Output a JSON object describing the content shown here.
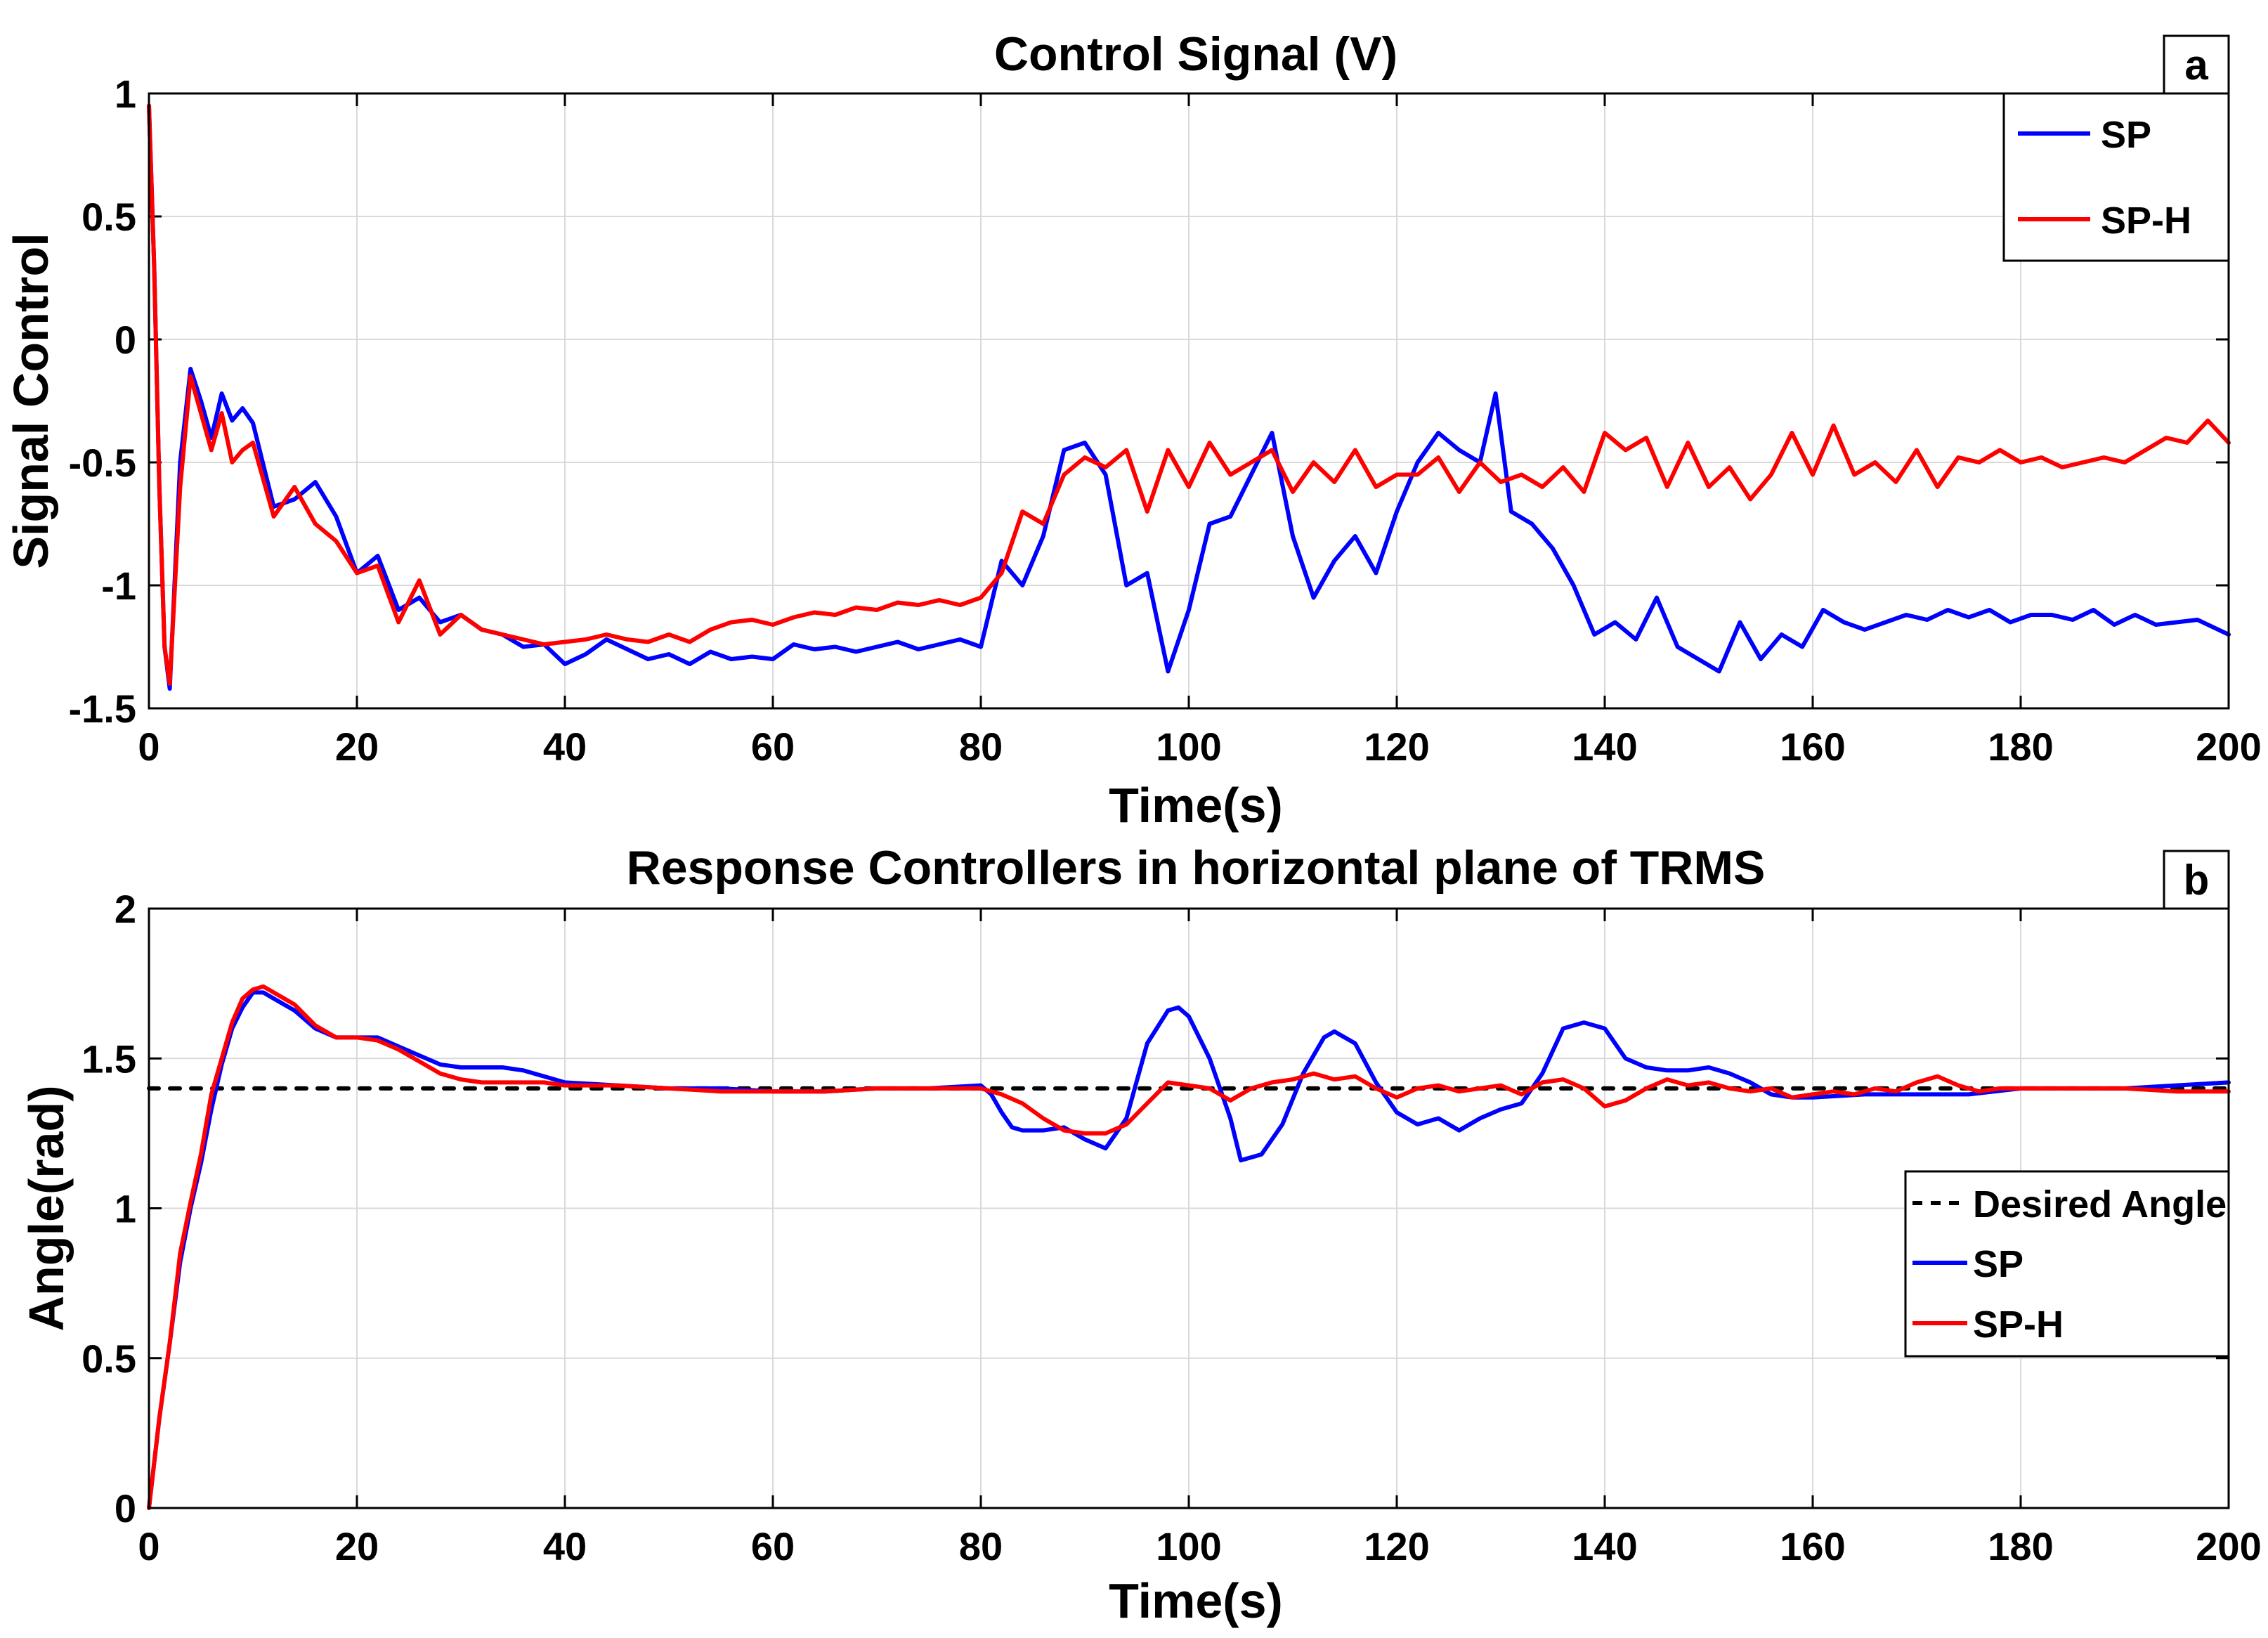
{
  "chart_data": [
    {
      "type": "line",
      "panel_label": "a",
      "title": "Control Signal (V)",
      "xlabel": "Time(s)",
      "ylabel": "Signal Control",
      "xlim": [
        0,
        200
      ],
      "ylim": [
        -1.5,
        1
      ],
      "xticks": [
        0,
        20,
        40,
        60,
        80,
        100,
        120,
        140,
        160,
        180,
        200
      ],
      "yticks": [
        -1.5,
        -1,
        -0.5,
        0,
        0.5,
        1
      ],
      "ytick_labels": [
        "-1.5",
        "-1",
        "-0.5",
        "0",
        "0.5",
        "1"
      ],
      "grid": true,
      "legend_position": "top-right",
      "series": [
        {
          "name": "SP",
          "color": "#0000ff",
          "x": [
            0,
            0.5,
            1,
            1.5,
            2,
            3,
            4,
            5,
            6,
            7,
            8,
            9,
            10,
            12,
            14,
            16,
            18,
            20,
            22,
            24,
            26,
            28,
            30,
            32,
            34,
            36,
            38,
            40,
            42,
            44,
            46,
            48,
            50,
            52,
            54,
            56,
            58,
            60,
            62,
            64,
            66,
            68,
            70,
            72,
            74,
            76,
            78,
            80,
            82,
            84,
            86,
            88,
            90,
            92,
            94,
            96,
            98,
            100,
            102,
            104,
            106,
            108,
            110,
            112,
            114,
            116,
            118,
            120,
            122,
            124,
            126,
            128,
            129.5,
            131,
            133,
            135,
            137,
            139,
            141,
            143,
            145,
            147,
            149,
            151,
            153,
            155,
            157,
            159,
            161,
            163,
            165,
            167,
            169,
            171,
            173,
            175,
            177,
            179,
            181,
            183,
            185,
            187,
            189,
            191,
            193,
            195,
            197,
            200
          ],
          "y": [
            0.95,
            0.3,
            -0.6,
            -1.25,
            -1.42,
            -0.5,
            -0.12,
            -0.25,
            -0.4,
            -0.22,
            -0.33,
            -0.28,
            -0.34,
            -0.68,
            -0.65,
            -0.58,
            -0.72,
            -0.95,
            -0.88,
            -1.1,
            -1.05,
            -1.15,
            -1.12,
            -1.18,
            -1.2,
            -1.25,
            -1.24,
            -1.32,
            -1.28,
            -1.22,
            -1.26,
            -1.3,
            -1.28,
            -1.32,
            -1.27,
            -1.3,
            -1.29,
            -1.3,
            -1.24,
            -1.26,
            -1.25,
            -1.27,
            -1.25,
            -1.23,
            -1.26,
            -1.24,
            -1.22,
            -1.25,
            -0.9,
            -1.0,
            -0.8,
            -0.45,
            -0.42,
            -0.55,
            -1.0,
            -0.95,
            -1.35,
            -1.1,
            -0.75,
            -0.72,
            -0.55,
            -0.38,
            -0.8,
            -1.05,
            -0.9,
            -0.8,
            -0.95,
            -0.7,
            -0.5,
            -0.38,
            -0.45,
            -0.5,
            -0.22,
            -0.7,
            -0.75,
            -0.85,
            -1.0,
            -1.2,
            -1.15,
            -1.22,
            -1.05,
            -1.25,
            -1.3,
            -1.35,
            -1.15,
            -1.3,
            -1.2,
            -1.25,
            -1.1,
            -1.15,
            -1.18,
            -1.15,
            -1.12,
            -1.14,
            -1.1,
            -1.13,
            -1.1,
            -1.15,
            -1.12,
            -1.12,
            -1.14,
            -1.1,
            -1.16,
            -1.12,
            -1.16,
            -1.15,
            -1.14,
            -1.2
          ]
        },
        {
          "name": "SP-H",
          "color": "#ff0000",
          "x": [
            0,
            0.5,
            1,
            1.5,
            2,
            3,
            4,
            5,
            6,
            7,
            8,
            9,
            10,
            12,
            14,
            16,
            18,
            20,
            22,
            24,
            26,
            28,
            30,
            32,
            34,
            36,
            38,
            40,
            42,
            44,
            46,
            48,
            50,
            52,
            54,
            56,
            58,
            60,
            62,
            64,
            66,
            68,
            70,
            72,
            74,
            76,
            78,
            80,
            82,
            84,
            86,
            88,
            90,
            92,
            94,
            96,
            98,
            100,
            102,
            104,
            106,
            108,
            110,
            112,
            114,
            116,
            118,
            120,
            122,
            124,
            126,
            128,
            130,
            132,
            134,
            136,
            138,
            140,
            142,
            144,
            146,
            148,
            150,
            152,
            154,
            156,
            158,
            160,
            162,
            164,
            166,
            168,
            170,
            172,
            174,
            176,
            178,
            180,
            182,
            184,
            186,
            188,
            190,
            192,
            194,
            196,
            198,
            200
          ],
          "y": [
            0.95,
            0.3,
            -0.6,
            -1.25,
            -1.4,
            -0.6,
            -0.15,
            -0.3,
            -0.45,
            -0.3,
            -0.5,
            -0.45,
            -0.42,
            -0.72,
            -0.6,
            -0.75,
            -0.82,
            -0.95,
            -0.92,
            -1.15,
            -0.98,
            -1.2,
            -1.12,
            -1.18,
            -1.2,
            -1.22,
            -1.24,
            -1.23,
            -1.22,
            -1.2,
            -1.22,
            -1.23,
            -1.2,
            -1.23,
            -1.18,
            -1.15,
            -1.14,
            -1.16,
            -1.13,
            -1.11,
            -1.12,
            -1.09,
            -1.1,
            -1.07,
            -1.08,
            -1.06,
            -1.08,
            -1.05,
            -0.95,
            -0.7,
            -0.75,
            -0.55,
            -0.48,
            -0.52,
            -0.45,
            -0.7,
            -0.45,
            -0.6,
            -0.42,
            -0.55,
            -0.5,
            -0.45,
            -0.62,
            -0.5,
            -0.58,
            -0.45,
            -0.6,
            -0.55,
            -0.55,
            -0.48,
            -0.62,
            -0.5,
            -0.58,
            -0.55,
            -0.6,
            -0.52,
            -0.62,
            -0.38,
            -0.45,
            -0.4,
            -0.6,
            -0.42,
            -0.6,
            -0.52,
            -0.65,
            -0.55,
            -0.38,
            -0.55,
            -0.35,
            -0.55,
            -0.5,
            -0.58,
            -0.45,
            -0.6,
            -0.48,
            -0.5,
            -0.45,
            -0.5,
            -0.48,
            -0.52,
            -0.5,
            -0.48,
            -0.5,
            -0.45,
            -0.4,
            -0.42,
            -0.33,
            -0.42
          ]
        }
      ]
    },
    {
      "type": "line",
      "panel_label": "b",
      "title": "Response Controllers in horizontal plane of TRMS",
      "xlabel": "Time(s)",
      "ylabel": "Angle(rad)",
      "xlim": [
        0,
        200
      ],
      "ylim": [
        0,
        2
      ],
      "xticks": [
        0,
        20,
        40,
        60,
        80,
        100,
        120,
        140,
        160,
        180,
        200
      ],
      "yticks": [
        0,
        0.5,
        1,
        1.5,
        2
      ],
      "ytick_labels": [
        "0",
        "0.5",
        "1",
        "1.5",
        "2"
      ],
      "grid": true,
      "legend_position": "right",
      "series": [
        {
          "name": "Desired Angle",
          "color": "#000000",
          "dashed": true,
          "x": [
            0,
            200
          ],
          "y": [
            1.4,
            1.4
          ]
        },
        {
          "name": "SP",
          "color": "#0000ff",
          "x": [
            0,
            1,
            2,
            3,
            4,
            5,
            6,
            7,
            8,
            9,
            10,
            11,
            12,
            14,
            16,
            18,
            20,
            22,
            24,
            26,
            28,
            30,
            32,
            34,
            36,
            38,
            40,
            45,
            50,
            55,
            60,
            65,
            70,
            75,
            80,
            81,
            82,
            83,
            84,
            86,
            88,
            90,
            92,
            94,
            96,
            98,
            99,
            100,
            102,
            104,
            105,
            107,
            109,
            111,
            113,
            114,
            116,
            118,
            120,
            122,
            124,
            126,
            128,
            130,
            132,
            134,
            136,
            138,
            140,
            142,
            144,
            146,
            148,
            150,
            152,
            154,
            156,
            158,
            160,
            165,
            170,
            175,
            180,
            185,
            190,
            195,
            200
          ],
          "y": [
            0,
            0.3,
            0.55,
            0.82,
            1.0,
            1.15,
            1.33,
            1.48,
            1.6,
            1.67,
            1.72,
            1.72,
            1.7,
            1.66,
            1.6,
            1.57,
            1.57,
            1.57,
            1.54,
            1.51,
            1.48,
            1.47,
            1.47,
            1.47,
            1.46,
            1.44,
            1.42,
            1.41,
            1.4,
            1.4,
            1.39,
            1.39,
            1.4,
            1.4,
            1.41,
            1.38,
            1.32,
            1.27,
            1.26,
            1.26,
            1.27,
            1.23,
            1.2,
            1.3,
            1.55,
            1.66,
            1.67,
            1.64,
            1.5,
            1.3,
            1.16,
            1.18,
            1.28,
            1.45,
            1.57,
            1.59,
            1.55,
            1.42,
            1.32,
            1.28,
            1.3,
            1.26,
            1.3,
            1.33,
            1.35,
            1.45,
            1.6,
            1.62,
            1.6,
            1.5,
            1.47,
            1.46,
            1.46,
            1.47,
            1.45,
            1.42,
            1.38,
            1.37,
            1.37,
            1.38,
            1.38,
            1.38,
            1.4,
            1.4,
            1.4,
            1.41,
            1.42
          ]
        },
        {
          "name": "SP-H",
          "color": "#ff0000",
          "x": [
            0,
            1,
            2,
            3,
            4,
            5,
            6,
            7,
            8,
            9,
            10,
            11,
            12,
            14,
            16,
            18,
            20,
            22,
            24,
            26,
            28,
            30,
            32,
            34,
            36,
            38,
            40,
            45,
            50,
            55,
            60,
            65,
            70,
            75,
            80,
            82,
            84,
            86,
            88,
            90,
            92,
            94,
            96,
            98,
            100,
            102,
            104,
            106,
            108,
            110,
            112,
            114,
            116,
            118,
            120,
            122,
            124,
            126,
            128,
            130,
            132,
            134,
            136,
            138,
            140,
            142,
            144,
            146,
            148,
            150,
            152,
            154,
            156,
            158,
            160,
            162,
            164,
            166,
            168,
            170,
            172,
            174,
            176,
            178,
            180,
            185,
            190,
            195,
            200
          ],
          "y": [
            0,
            0.3,
            0.55,
            0.85,
            1.02,
            1.18,
            1.38,
            1.5,
            1.62,
            1.7,
            1.73,
            1.74,
            1.72,
            1.68,
            1.61,
            1.57,
            1.57,
            1.56,
            1.53,
            1.49,
            1.45,
            1.43,
            1.42,
            1.42,
            1.42,
            1.42,
            1.41,
            1.41,
            1.4,
            1.39,
            1.39,
            1.39,
            1.4,
            1.4,
            1.4,
            1.38,
            1.35,
            1.3,
            1.26,
            1.25,
            1.25,
            1.28,
            1.35,
            1.42,
            1.41,
            1.4,
            1.36,
            1.4,
            1.42,
            1.43,
            1.45,
            1.43,
            1.44,
            1.4,
            1.37,
            1.4,
            1.41,
            1.39,
            1.4,
            1.41,
            1.38,
            1.42,
            1.43,
            1.4,
            1.34,
            1.36,
            1.4,
            1.43,
            1.41,
            1.42,
            1.4,
            1.39,
            1.4,
            1.37,
            1.38,
            1.39,
            1.38,
            1.4,
            1.39,
            1.42,
            1.44,
            1.41,
            1.39,
            1.4,
            1.4,
            1.4,
            1.4,
            1.39,
            1.39
          ]
        }
      ]
    }
  ]
}
